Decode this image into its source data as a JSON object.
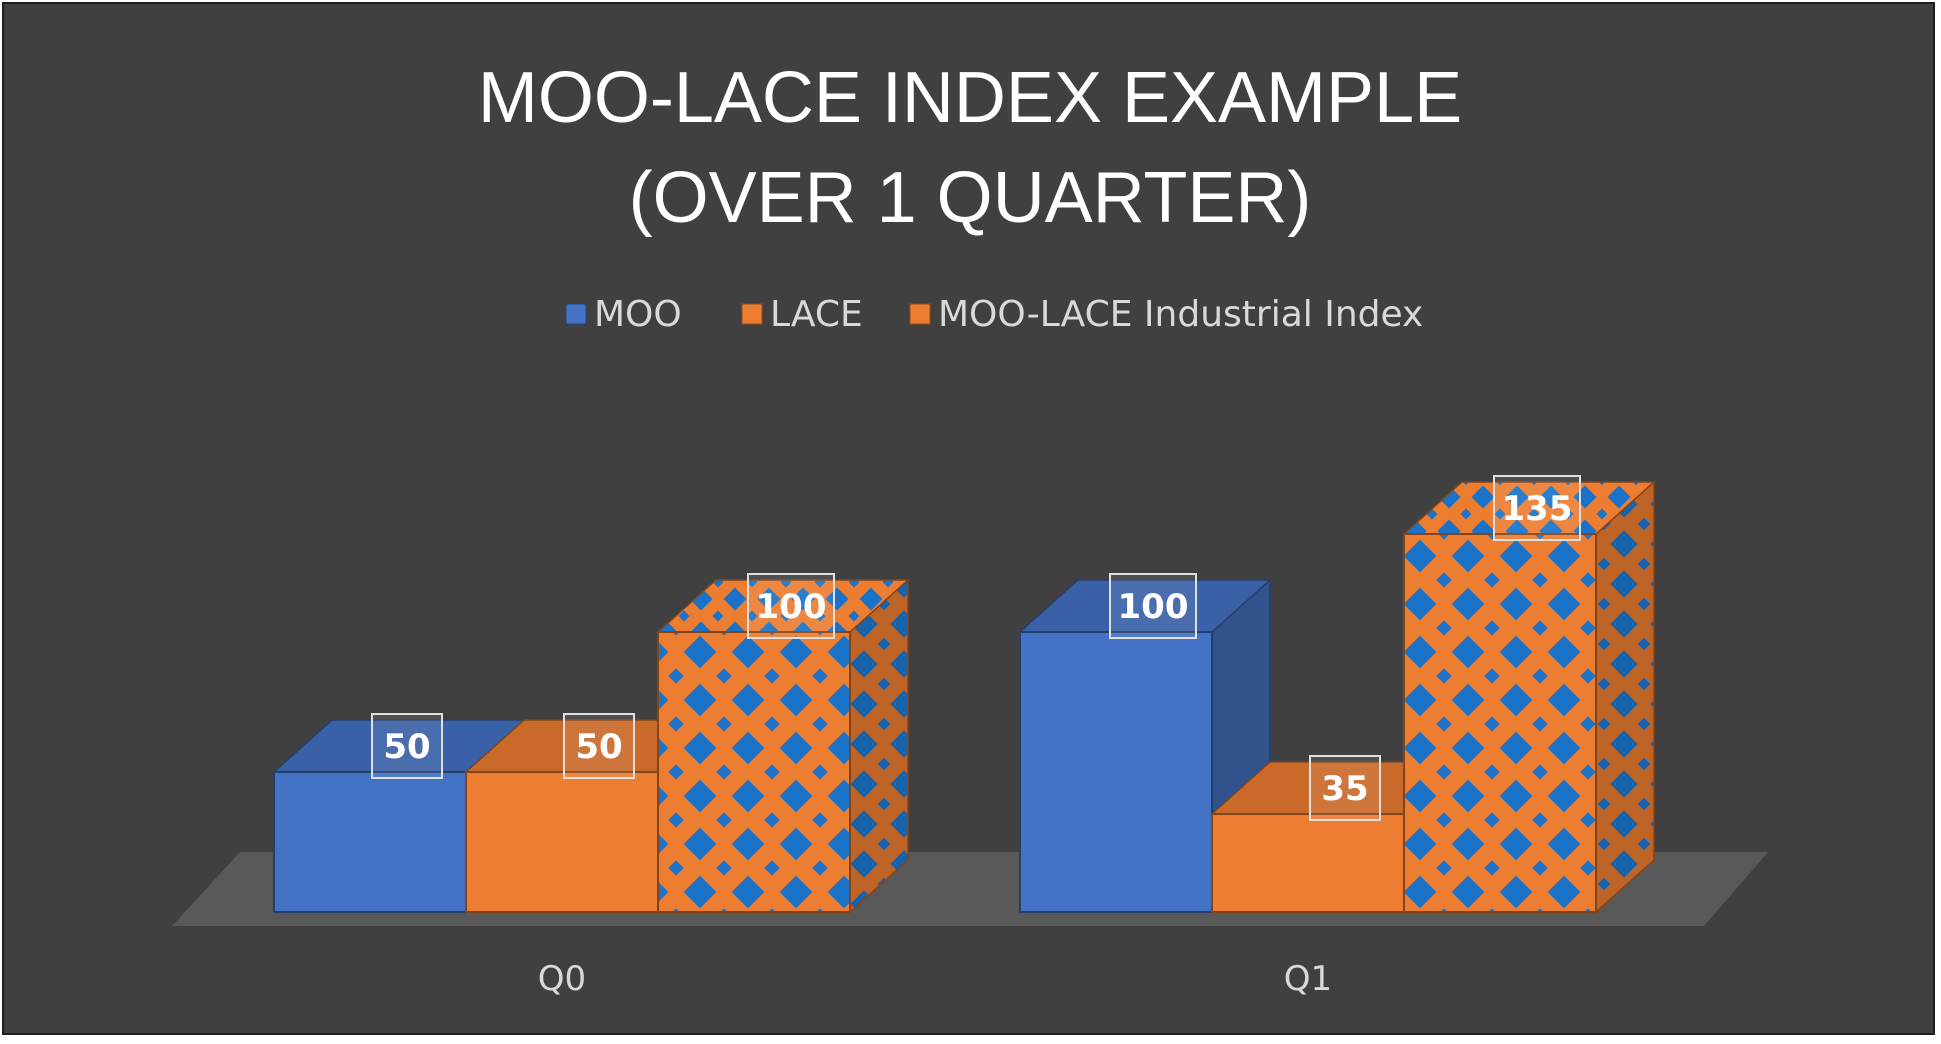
{
  "chart_data": {
    "type": "bar",
    "title_lines": [
      "MOO-LACE INDEX EXAMPLE",
      "(OVER 1 QUARTER)"
    ],
    "categories": [
      "Q0",
      "Q1"
    ],
    "series": [
      {
        "name": "MOO",
        "values": [
          50,
          100
        ],
        "color": "#4472c4",
        "pattern": "solid"
      },
      {
        "name": "LACE",
        "values": [
          50,
          35
        ],
        "color": "#ed7d31",
        "pattern": "solid"
      },
      {
        "name": "MOO-LACE Industrial Index",
        "values": [
          100,
          135
        ],
        "color": "#ed7d31",
        "pattern": "blue-diamond"
      }
    ],
    "data_labels": true,
    "legend_position": "top",
    "style": "3d-clustered-column",
    "grid": false,
    "axes_visible": false,
    "ylim": [
      0,
      135
    ]
  },
  "colors": {
    "background": "#404040",
    "floor": "#595959",
    "pattern_accent": "#1a73c9",
    "text": "#d9d9d9"
  }
}
